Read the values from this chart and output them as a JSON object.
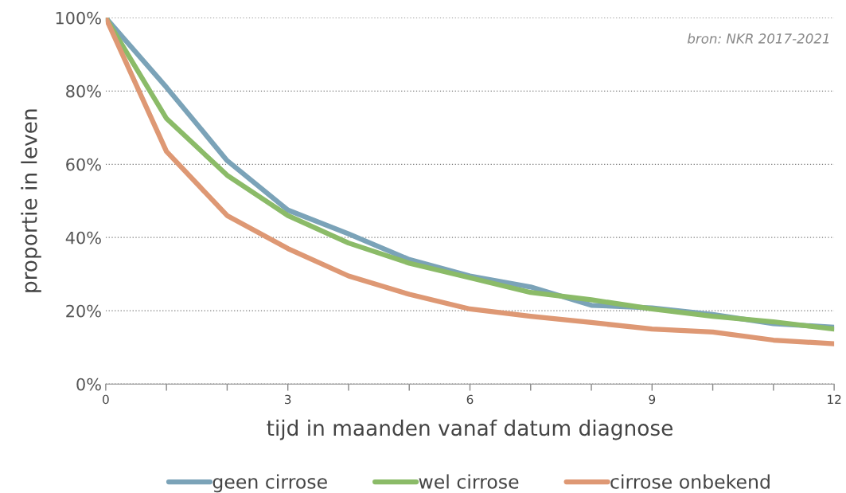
{
  "chart_data": {
    "type": "line",
    "xlabel": "tijd in maanden vanaf datum diagnose",
    "ylabel": "proportie in leven",
    "annotations": [
      "bron: NKR 2017-2021"
    ],
    "x": [
      0,
      1,
      2,
      3,
      4,
      5,
      6,
      7,
      8,
      9,
      10,
      11,
      12
    ],
    "series": [
      {
        "name": "geen cirrose",
        "color": "#7ba3b8",
        "values": [
          100,
          81,
          61,
          47.5,
          41,
          34,
          29.5,
          26.5,
          21.5,
          20.8,
          19,
          16.5,
          15.5
        ]
      },
      {
        "name": "wel cirrose",
        "color": "#8bbb68",
        "values": [
          100,
          72.5,
          57,
          46,
          38.5,
          33,
          29,
          25,
          23,
          20.5,
          18.5,
          17,
          15
        ]
      },
      {
        "name": "cirrose onbekend",
        "color": "#de9874",
        "values": [
          100,
          63.5,
          46,
          37,
          29.5,
          24.5,
          20.5,
          18.5,
          16.8,
          15,
          14.2,
          12,
          11
        ]
      }
    ],
    "xlim": [
      0,
      12
    ],
    "xticks": [
      0,
      {
        "value": 1,
        "label": null
      },
      {
        "value": 2,
        "label": null
      },
      3,
      {
        "value": 4,
        "label": null
      },
      {
        "value": 5,
        "label": null
      },
      6,
      {
        "value": 7,
        "label": null
      },
      {
        "value": 8,
        "label": null
      },
      9,
      {
        "value": 10,
        "label": null
      },
      {
        "value": 11,
        "label": null
      },
      12
    ],
    "ylim": [
      0,
      100
    ],
    "yticks": [
      {
        "value": 0,
        "label": "0%"
      },
      {
        "value": 20,
        "label": "20%"
      },
      {
        "value": 40,
        "label": "40%"
      },
      {
        "value": 60,
        "label": "60%"
      },
      {
        "value": 80,
        "label": "80%"
      },
      {
        "value": 100,
        "label": "100%"
      }
    ],
    "grid": "y",
    "legend": "bottom",
    "marker": "none",
    "line_style": "solid"
  }
}
